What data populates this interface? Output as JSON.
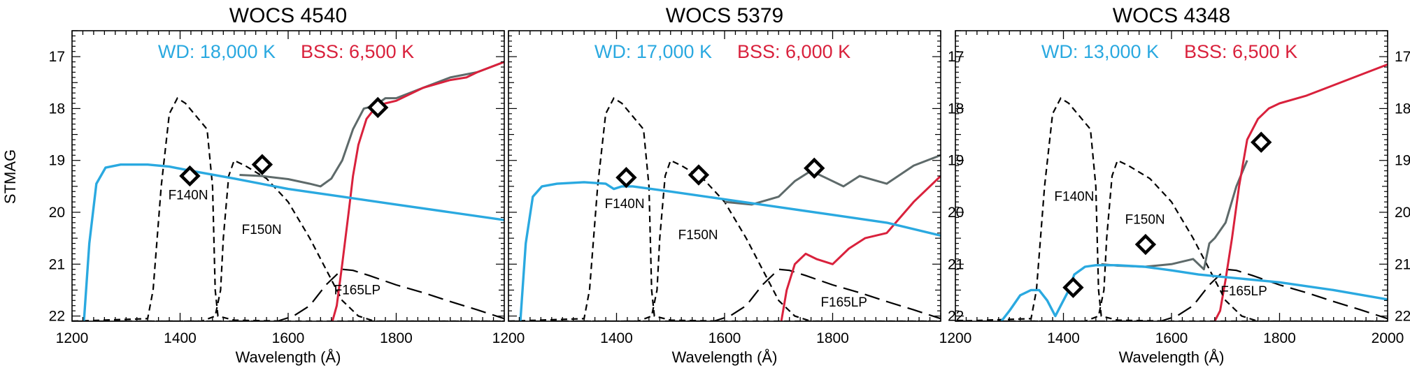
{
  "colors": {
    "wd": "#2aa9e0",
    "bss": "#d9213c",
    "composite": "#5e6a6a",
    "filter": "#000000",
    "marker": "#000000"
  },
  "shared": {
    "xlabel": "Wavelength (Å)",
    "ylabel": "STMAG",
    "filters": [
      "F140N",
      "F150N",
      "F165LP"
    ]
  },
  "chart_data": [
    {
      "type": "line",
      "title": "WOCS 4540",
      "wd_label": "WD: 18,000 K",
      "bss_label": "BSS: 6,500 K",
      "xlim": [
        1200,
        2000
      ],
      "ylim": [
        22.1,
        16.5
      ],
      "y_inverted": true,
      "xticks": [
        1200,
        1400,
        1600,
        1800
      ],
      "yticks": [
        17,
        18,
        19,
        20,
        21,
        22
      ],
      "xlabel": "Wavelength (Å)",
      "ylabel": "STMAG",
      "series": [
        {
          "kind": "wd",
          "x": [
            1222,
            1232,
            1245,
            1262,
            1290,
            1340,
            1380,
            1420,
            1500,
            1600,
            1700,
            1800,
            1900,
            2000
          ],
          "y": [
            22.1,
            20.6,
            19.45,
            19.14,
            19.08,
            19.08,
            19.12,
            19.2,
            19.35,
            19.55,
            19.7,
            19.85,
            20.0,
            20.15
          ]
        },
        {
          "kind": "composite",
          "x": [
            1510,
            1550,
            1600,
            1640,
            1660,
            1680,
            1700,
            1720,
            1740,
            1760,
            1780,
            1800,
            1850,
            1900,
            1950,
            2000
          ],
          "y": [
            19.28,
            19.3,
            19.36,
            19.45,
            19.5,
            19.35,
            19.0,
            18.4,
            18.0,
            17.95,
            17.8,
            17.8,
            17.6,
            17.4,
            17.3,
            17.1
          ]
        },
        {
          "kind": "bss",
          "x": [
            1682,
            1690,
            1700,
            1712,
            1720,
            1730,
            1745,
            1760,
            1780,
            1800,
            1850,
            1900,
            1930,
            1950,
            2000
          ],
          "y": [
            22.1,
            21.8,
            21.0,
            20.0,
            19.3,
            18.7,
            18.2,
            18.0,
            17.9,
            17.85,
            17.6,
            17.45,
            17.4,
            17.3,
            17.1
          ]
        }
      ],
      "filter_curves": [
        {
          "name": "F140N",
          "x": [
            1200,
            1340,
            1350,
            1365,
            1380,
            1395,
            1410,
            1430,
            1450,
            1460,
            1465,
            1470,
            1500,
            1600,
            2000
          ],
          "y": [
            22.1,
            22.05,
            21.5,
            19.5,
            18.1,
            17.8,
            17.9,
            18.15,
            18.4,
            19.5,
            21.5,
            22.0,
            22.08,
            22.1,
            22.1
          ]
        },
        {
          "name": "F150N",
          "x": [
            1200,
            1440,
            1465,
            1475,
            1480,
            1490,
            1500,
            1520,
            1560,
            1600,
            1640,
            1670,
            1700,
            1730,
            1760,
            2000
          ],
          "y": [
            22.1,
            22.1,
            22.0,
            21.5,
            20.5,
            19.3,
            19.0,
            19.1,
            19.35,
            19.8,
            20.5,
            21.1,
            21.7,
            22.0,
            22.1,
            22.1
          ]
        },
        {
          "name": "F165LP",
          "x": [
            1200,
            1580,
            1610,
            1640,
            1670,
            1700,
            1720,
            1750,
            1800,
            1850,
            1900,
            1950,
            2000
          ],
          "y": [
            22.1,
            22.1,
            22.0,
            21.8,
            21.4,
            21.1,
            21.12,
            21.22,
            21.4,
            21.55,
            21.72,
            21.88,
            22.05
          ]
        }
      ],
      "markers": {
        "x": [
          1418,
          1552,
          1766
        ],
        "y": [
          19.3,
          19.08,
          17.98
        ]
      },
      "filter_labels": [
        {
          "text": "F140N",
          "x": 1415,
          "y": 19.75
        },
        {
          "text": "F150N",
          "x": 1551,
          "y": 20.42
        },
        {
          "text": "F165LP",
          "x": 1728,
          "y": 21.58
        }
      ]
    },
    {
      "type": "line",
      "title": "WOCS 5379",
      "wd_label": "WD: 17,000 K",
      "bss_label": "BSS: 6,000 K",
      "xlim": [
        1200,
        2000
      ],
      "ylim": [
        22.1,
        16.5
      ],
      "y_inverted": true,
      "xticks": [
        1200,
        1400,
        1600,
        1800
      ],
      "yticks": [
        17,
        18,
        19,
        20,
        21,
        22
      ],
      "xlabel": "Wavelength (Å)",
      "ylabel": "STMAG",
      "series": [
        {
          "kind": "wd",
          "x": [
            1222,
            1232,
            1245,
            1262,
            1290,
            1340,
            1380,
            1395,
            1410,
            1430,
            1500,
            1600,
            1700,
            1800,
            1900,
            2000
          ],
          "y": [
            22.1,
            20.6,
            19.7,
            19.5,
            19.45,
            19.42,
            19.45,
            19.55,
            19.5,
            19.5,
            19.6,
            19.75,
            19.9,
            20.05,
            20.2,
            20.45
          ]
        },
        {
          "kind": "composite",
          "x": [
            1600,
            1650,
            1700,
            1730,
            1760,
            1790,
            1820,
            1850,
            1900,
            1950,
            2000
          ],
          "y": [
            19.8,
            19.85,
            19.7,
            19.4,
            19.2,
            19.35,
            19.5,
            19.3,
            19.45,
            19.1,
            18.9
          ]
        },
        {
          "kind": "bss",
          "x": [
            1705,
            1715,
            1730,
            1750,
            1770,
            1800,
            1830,
            1860,
            1900,
            1950,
            2000
          ],
          "y": [
            22.1,
            21.5,
            21.0,
            20.8,
            20.9,
            21.0,
            20.7,
            20.5,
            20.4,
            19.8,
            19.3
          ]
        }
      ],
      "filter_curves": [
        {
          "name": "F140N",
          "x": [
            1200,
            1340,
            1350,
            1365,
            1380,
            1395,
            1410,
            1430,
            1450,
            1460,
            1465,
            1470,
            1500,
            1600,
            2000
          ],
          "y": [
            22.1,
            22.05,
            21.5,
            19.5,
            18.1,
            17.8,
            17.9,
            18.15,
            18.4,
            19.5,
            21.5,
            22.0,
            22.08,
            22.1,
            22.1
          ]
        },
        {
          "name": "F150N",
          "x": [
            1200,
            1440,
            1465,
            1475,
            1480,
            1490,
            1500,
            1520,
            1560,
            1600,
            1640,
            1670,
            1700,
            1730,
            1760,
            2000
          ],
          "y": [
            22.1,
            22.1,
            22.0,
            21.5,
            20.5,
            19.3,
            19.0,
            19.1,
            19.35,
            19.8,
            20.5,
            21.1,
            21.7,
            22.0,
            22.1,
            22.1
          ]
        },
        {
          "name": "F165LP",
          "x": [
            1200,
            1580,
            1610,
            1640,
            1670,
            1700,
            1720,
            1750,
            1800,
            1850,
            1900,
            1950,
            2000
          ],
          "y": [
            22.1,
            22.1,
            22.0,
            21.8,
            21.4,
            21.1,
            21.12,
            21.22,
            21.4,
            21.55,
            21.72,
            21.88,
            22.05
          ]
        }
      ],
      "markers": {
        "x": [
          1418,
          1552,
          1766
        ],
        "y": [
          19.33,
          19.28,
          19.15
        ]
      },
      "filter_labels": [
        {
          "text": "F140N",
          "x": 1415,
          "y": 19.92
        },
        {
          "text": "F150N",
          "x": 1551,
          "y": 20.52
        },
        {
          "text": "F165LP",
          "x": 1821,
          "y": 21.82
        }
      ]
    },
    {
      "type": "line",
      "title": "WOCS 4348",
      "wd_label": "WD: 13,000 K",
      "bss_label": "BSS: 6,500 K",
      "xlim": [
        1200,
        2000
      ],
      "ylim": [
        22.1,
        16.5
      ],
      "y_inverted": true,
      "xticks": [
        1200,
        1400,
        1600,
        1800,
        2000
      ],
      "yticks": [
        17,
        18,
        19,
        20,
        21,
        22
      ],
      "xlabel": "Wavelength (Å)",
      "ylabel": "STMAG",
      "series": [
        {
          "kind": "wd",
          "x": [
            1285,
            1300,
            1320,
            1340,
            1355,
            1370,
            1385,
            1395,
            1410,
            1420,
            1440,
            1460,
            1500,
            1550,
            1600,
            1650,
            1700,
            1800,
            1900,
            2000
          ],
          "y": [
            22.1,
            21.9,
            21.6,
            21.5,
            21.5,
            21.7,
            22.0,
            21.8,
            21.5,
            21.2,
            21.05,
            21.02,
            21.02,
            21.05,
            21.12,
            21.2,
            21.25,
            21.35,
            21.5,
            21.68
          ]
        },
        {
          "kind": "composite",
          "x": [
            1470,
            1500,
            1550,
            1600,
            1640,
            1660,
            1670,
            1680,
            1700,
            1720,
            1740
          ],
          "y": [
            21.0,
            21.03,
            21.05,
            21.0,
            20.9,
            21.1,
            20.6,
            20.5,
            20.2,
            19.5,
            19.0
          ]
        },
        {
          "kind": "bss",
          "x": [
            1680,
            1690,
            1700,
            1712,
            1725,
            1740,
            1760,
            1780,
            1800,
            1850,
            1900,
            1950,
            2000
          ],
          "y": [
            22.1,
            21.9,
            21.3,
            20.5,
            19.5,
            18.6,
            18.2,
            18.0,
            17.9,
            17.75,
            17.55,
            17.35,
            17.15
          ]
        }
      ],
      "filter_curves": [
        {
          "name": "F140N",
          "x": [
            1200,
            1340,
            1350,
            1365,
            1380,
            1395,
            1410,
            1430,
            1450,
            1460,
            1465,
            1470,
            1500,
            1600,
            2000
          ],
          "y": [
            22.1,
            22.05,
            21.5,
            19.5,
            18.1,
            17.8,
            17.9,
            18.15,
            18.4,
            19.5,
            21.5,
            22.0,
            22.08,
            22.1,
            22.1
          ]
        },
        {
          "name": "F150N",
          "x": [
            1200,
            1440,
            1465,
            1475,
            1480,
            1490,
            1500,
            1520,
            1560,
            1600,
            1640,
            1670,
            1700,
            1730,
            1760,
            2000
          ],
          "y": [
            22.1,
            22.1,
            22.0,
            21.5,
            20.5,
            19.3,
            19.0,
            19.1,
            19.35,
            19.8,
            20.5,
            21.1,
            21.7,
            22.0,
            22.1,
            22.1
          ]
        },
        {
          "name": "F165LP",
          "x": [
            1200,
            1580,
            1610,
            1640,
            1670,
            1700,
            1720,
            1750,
            1800,
            1850,
            1900,
            1950,
            2000
          ],
          "y": [
            22.1,
            22.1,
            22.0,
            21.8,
            21.4,
            21.1,
            21.12,
            21.22,
            21.4,
            21.55,
            21.72,
            21.88,
            22.05
          ]
        }
      ],
      "markers": {
        "x": [
          1418,
          1552,
          1766
        ],
        "y": [
          21.45,
          20.62,
          18.65
        ]
      },
      "filter_labels": [
        {
          "text": "F140N",
          "x": 1420,
          "y": 19.78
        },
        {
          "text": "F150N",
          "x": 1551,
          "y": 20.22
        },
        {
          "text": "F165LP",
          "x": 1734,
          "y": 21.6
        }
      ]
    }
  ]
}
